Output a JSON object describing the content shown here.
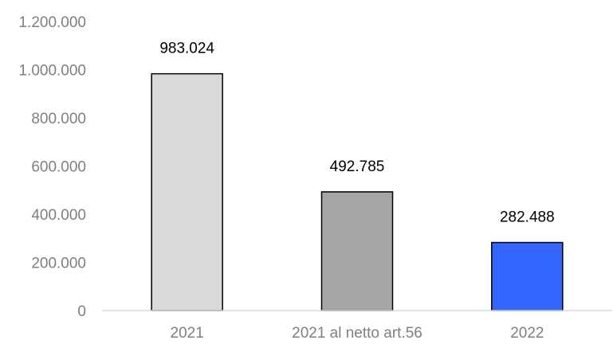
{
  "chart_data": {
    "type": "bar",
    "title": "",
    "xlabel": "",
    "ylabel": "",
    "categories": [
      "2021",
      "2021 al netto art.56",
      "2022"
    ],
    "values": [
      983024,
      492785,
      282488
    ],
    "value_labels": [
      "983.024",
      "492.785",
      "282.488"
    ],
    "bar_colors": [
      "#d9d9d9",
      "#a6a6a6",
      "#3366ff"
    ],
    "bar_outline": "#000000",
    "ylim": [
      0,
      1200000
    ],
    "yticks": [
      0,
      200000,
      400000,
      600000,
      800000,
      1000000,
      1200000
    ],
    "ytick_labels": [
      "0",
      "200.000",
      "400.000",
      "600.000",
      "800.000",
      "1.000.000",
      "1.200.000"
    ],
    "grid": false,
    "legend": "none"
  }
}
